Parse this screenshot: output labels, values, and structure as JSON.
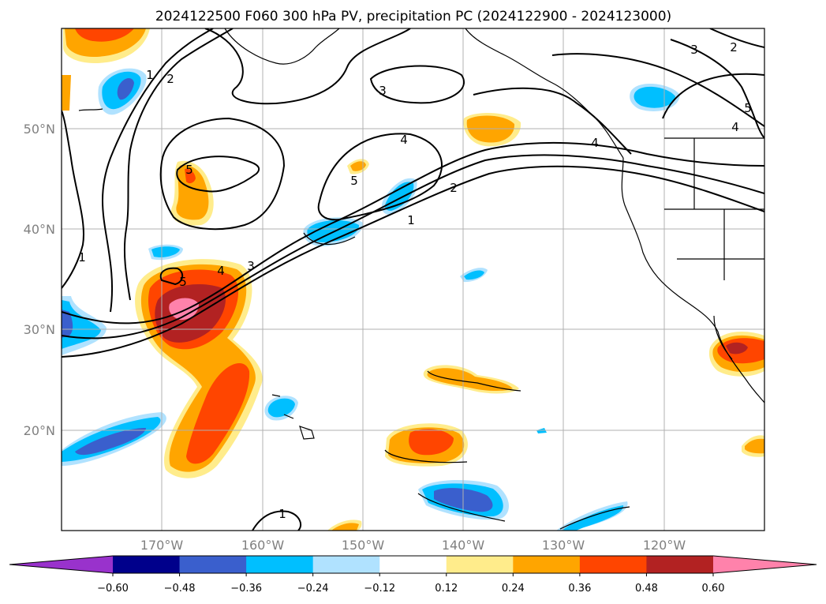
{
  "title": "2024122500 F060 300 hPa PV, precipitation PC (2024122900 - 2024123000)",
  "lat_labels": [
    "50°N",
    "40°N",
    "30°N",
    "20°N"
  ],
  "lon_labels": [
    "170°W",
    "160°W",
    "150°W",
    "140°W",
    "130°W",
    "120°W"
  ],
  "colorbar": {
    "ticks": [
      "−0.60",
      "−0.48",
      "−0.36",
      "−0.24",
      "−0.12",
      "0.12",
      "0.24",
      "0.36",
      "0.48",
      "0.60"
    ],
    "colors": [
      "#9932cc",
      "#00008b",
      "#3a5fcd",
      "#00bfff",
      "#b0e2ff",
      "#ffffff",
      "#ffec8b",
      "#ffa500",
      "#ff4500",
      "#b22222",
      "#ff82ab"
    ]
  },
  "pv_contour_labels": [
    "1",
    "2",
    "3",
    "4",
    "5"
  ],
  "map": {
    "lon_range": [
      -180,
      -110
    ],
    "lat_range": [
      10,
      60
    ]
  }
}
